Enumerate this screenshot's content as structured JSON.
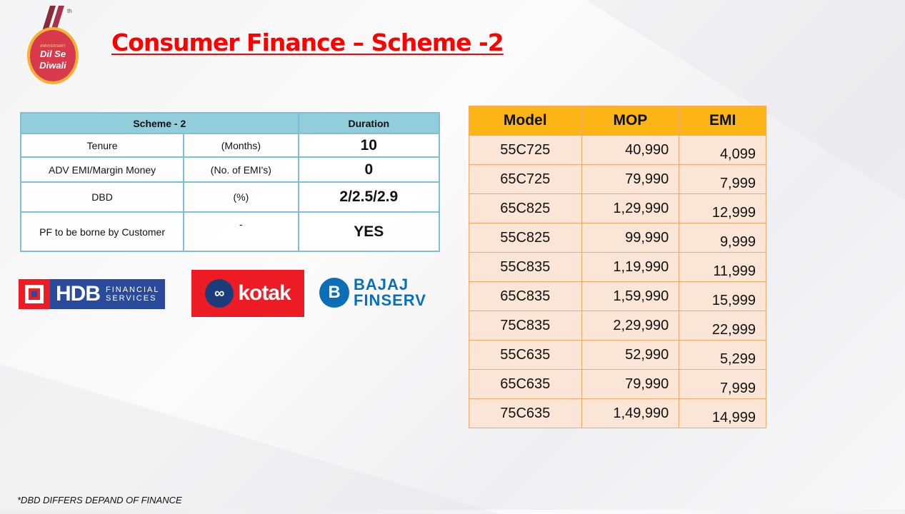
{
  "title": "Consumer Finance – Scheme -2",
  "logo": {
    "text": "6th Anniversary Dil Se Diwali"
  },
  "scheme_table": {
    "headers": [
      "Scheme - 2",
      "Duration"
    ],
    "rows": [
      {
        "label": "Tenure",
        "unit": "(Months)",
        "value": "10"
      },
      {
        "label": "ADV EMI/Margin Money",
        "unit": "(No. of EMI's)",
        "value": "0"
      },
      {
        "label": "DBD",
        "unit": "(%)",
        "value": "2/2.5/2.9"
      },
      {
        "label": "PF to be borne by Customer",
        "unit": "-",
        "value": "YES"
      }
    ]
  },
  "financers": [
    {
      "name": "HDB FINANCIAL SERVICES",
      "short": "HDB",
      "sub1": "FINANCIAL",
      "sub2": "SERVICES",
      "color": "#2a4b9b"
    },
    {
      "name": "kotak",
      "color": "#ed1c24"
    },
    {
      "name": "BAJAJ FINSERV",
      "line1": "BAJAJ",
      "line2": "FINSERV",
      "color": "#0b6fb8"
    }
  ],
  "model_table": {
    "headers": [
      "Model",
      "MOP",
      "EMI"
    ],
    "rows": [
      [
        "55C725",
        "40,990",
        "4,099"
      ],
      [
        "65C725",
        "79,990",
        "7,999"
      ],
      [
        "65C825",
        "1,29,990",
        "12,999"
      ],
      [
        "55C825",
        "99,990",
        "9,999"
      ],
      [
        "55C835",
        "1,19,990",
        "11,999"
      ],
      [
        "65C835",
        "1,59,990",
        "15,999"
      ],
      [
        "75C835",
        "2,29,990",
        "22,999"
      ],
      [
        "55C635",
        "52,990",
        "5,299"
      ],
      [
        "65C635",
        "79,990",
        "7,999"
      ],
      [
        "75C635",
        "1,49,990",
        "14,999"
      ]
    ]
  },
  "footnote": "*DBD DIFFERS DEPAND OF FINANCE"
}
